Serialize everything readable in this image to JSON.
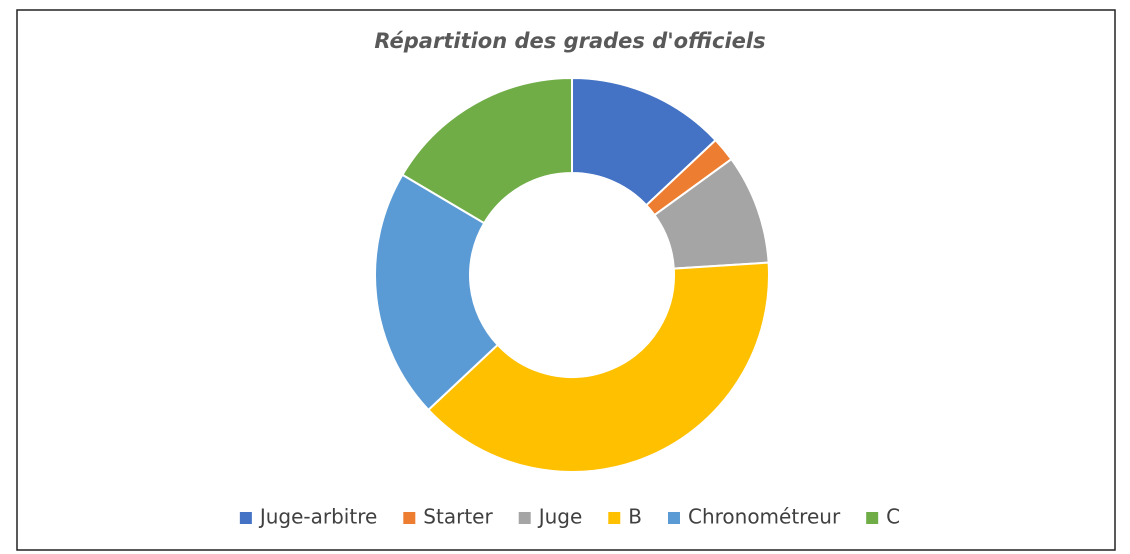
{
  "chart_data": {
    "type": "donut",
    "title": "Répartition des grades d'officiels",
    "categories": [
      "Juge-arbitre",
      "Starter",
      "Juge",
      "B",
      "Chronométreur",
      "C"
    ],
    "values": [
      13,
      2,
      9,
      39,
      20.5,
      16.5
    ],
    "colors": [
      "#4472c4",
      "#ed7d31",
      "#a5a5a5",
      "#ffc000",
      "#5b9bd5",
      "#70ad47"
    ],
    "legend": "bottom"
  }
}
